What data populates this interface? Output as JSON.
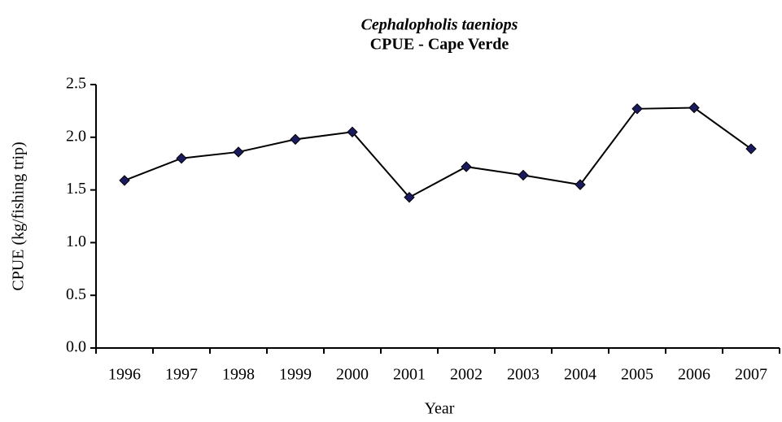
{
  "chart_data": {
    "type": "line",
    "title": "Cephalopholis taeniops",
    "subtitle": "CPUE - Cape Verde",
    "x_label": "Year",
    "y_label": "CPUE (kg/fishing trip)",
    "categories": [
      "1996",
      "1997",
      "1998",
      "1999",
      "2000",
      "2001",
      "2002",
      "2003",
      "2004",
      "2005",
      "2006",
      "2007"
    ],
    "series": [
      {
        "name": "CPUE",
        "color": "#000000",
        "marker_color": "#1a1a5e",
        "values": [
          1.59,
          1.8,
          1.86,
          1.98,
          2.05,
          1.43,
          1.72,
          1.64,
          1.55,
          2.27,
          2.28,
          1.89
        ]
      }
    ],
    "ylim": [
      0,
      2.5
    ],
    "yticks": [
      {
        "value": 0,
        "label": "0.0"
      },
      0.5,
      {
        "value": 1,
        "label": "1.0"
      },
      1.5,
      {
        "value": 2,
        "label": "2.0"
      },
      2.5
    ],
    "grid": false
  }
}
